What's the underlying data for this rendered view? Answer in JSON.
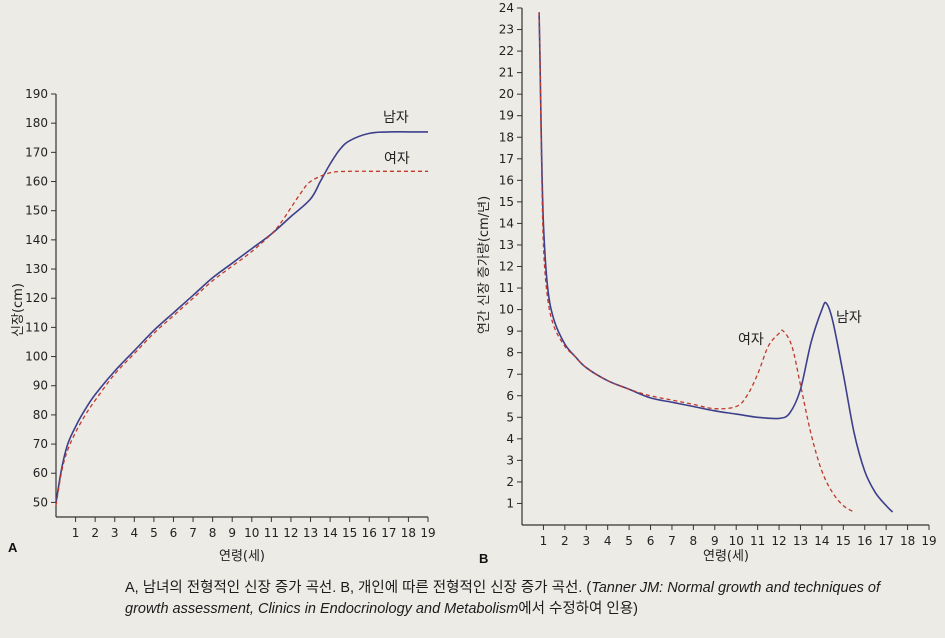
{
  "chart_data": [
    {
      "type": "line",
      "panel_label": "A",
      "xlabel": "연령(세)",
      "ylabel": "신장(cm)",
      "xlim": [
        0,
        19
      ],
      "ylim": [
        45,
        190
      ],
      "x_ticks": [
        1,
        2,
        3,
        4,
        5,
        6,
        7,
        8,
        9,
        10,
        11,
        12,
        13,
        14,
        15,
        16,
        17,
        18,
        19
      ],
      "y_ticks": [
        50,
        60,
        70,
        80,
        90,
        100,
        110,
        120,
        130,
        140,
        150,
        160,
        170,
        180,
        190
      ],
      "series": [
        {
          "name": "남자",
          "style": "solid",
          "color": "#3d3f8c",
          "x": [
            0,
            0.3,
            0.6,
            1,
            1.5,
            2,
            3,
            4,
            5,
            6,
            7,
            8,
            9,
            10,
            11,
            12,
            13,
            13.5,
            14,
            14.5,
            15,
            16,
            17,
            18,
            19
          ],
          "y": [
            50,
            62,
            70,
            76,
            82,
            87,
            95,
            102,
            109,
            115,
            121,
            127,
            132,
            137,
            142,
            148,
            154,
            160,
            166,
            171,
            174,
            176.5,
            177,
            177,
            177
          ]
        },
        {
          "name": "여자",
          "style": "dashed",
          "color": "#c0392b",
          "x": [
            0,
            0.3,
            0.6,
            1,
            1.5,
            2,
            3,
            4,
            5,
            6,
            7,
            8,
            9,
            10,
            11,
            11.5,
            12,
            12.5,
            13,
            14,
            15,
            16,
            17,
            18,
            19
          ],
          "y": [
            49,
            61,
            68,
            74,
            80,
            85,
            94,
            101,
            108,
            114,
            120,
            126,
            131,
            136,
            142,
            146,
            151,
            156,
            160,
            163,
            163.5,
            163.5,
            163.5,
            163.5,
            163.5
          ]
        }
      ]
    },
    {
      "type": "line",
      "panel_label": "B",
      "xlabel": "연령(세)",
      "ylabel": "연간 신장 증가량(cm/년)",
      "xlim": [
        0,
        19
      ],
      "ylim": [
        0,
        24
      ],
      "x_ticks": [
        1,
        2,
        3,
        4,
        5,
        6,
        7,
        8,
        9,
        10,
        11,
        12,
        13,
        14,
        15,
        16,
        17,
        18,
        19
      ],
      "y_ticks": [
        1,
        2,
        3,
        4,
        5,
        6,
        7,
        8,
        9,
        10,
        11,
        12,
        13,
        14,
        15,
        16,
        17,
        18,
        19,
        20,
        21,
        22,
        23,
        24
      ],
      "series": [
        {
          "name": "남자",
          "style": "solid",
          "color": "#3d3f8c",
          "x": [
            0.8,
            0.85,
            0.9,
            1,
            1.2,
            1.5,
            2,
            2.5,
            3,
            4,
            5,
            6,
            7,
            8,
            9,
            10,
            11,
            12,
            12.5,
            13,
            13.5,
            14,
            14.2,
            14.5,
            15,
            15.5,
            16,
            16.5,
            17,
            17.3
          ],
          "y": [
            23.8,
            21,
            18,
            14,
            11,
            9.5,
            8.4,
            7.8,
            7.3,
            6.7,
            6.3,
            5.9,
            5.7,
            5.5,
            5.3,
            5.15,
            5.0,
            4.95,
            5.2,
            6.3,
            8.5,
            10.0,
            10.3,
            9.5,
            7.0,
            4.3,
            2.5,
            1.5,
            0.9,
            0.6
          ]
        },
        {
          "name": "여자",
          "style": "dashed",
          "color": "#c0392b",
          "x": [
            0.8,
            0.85,
            0.9,
            1,
            1.2,
            1.5,
            2,
            2.5,
            3,
            4,
            5,
            6,
            7,
            8,
            9,
            10,
            10.5,
            11,
            11.5,
            12,
            12.2,
            12.6,
            13,
            13.5,
            14,
            14.5,
            15,
            15.5
          ],
          "y": [
            23.8,
            21,
            17.5,
            13,
            10.5,
            9.2,
            8.3,
            7.8,
            7.3,
            6.7,
            6.3,
            6.0,
            5.8,
            5.6,
            5.4,
            5.5,
            6.0,
            7.0,
            8.3,
            8.9,
            9.0,
            8.3,
            6.5,
            4.2,
            2.5,
            1.5,
            0.9,
            0.6
          ]
        }
      ]
    }
  ],
  "caption": {
    "part1": "A, 남녀의 전형적인 신장 증가 곡선. B, 개인에 따른 전형적인 신장 증가 곡선. (",
    "part2": "Tanner JM: Normal growth and techniques of growth assessment, Clinics in Endocrinology and Metabolism",
    "part3": "에서 수정하여 인용)"
  }
}
